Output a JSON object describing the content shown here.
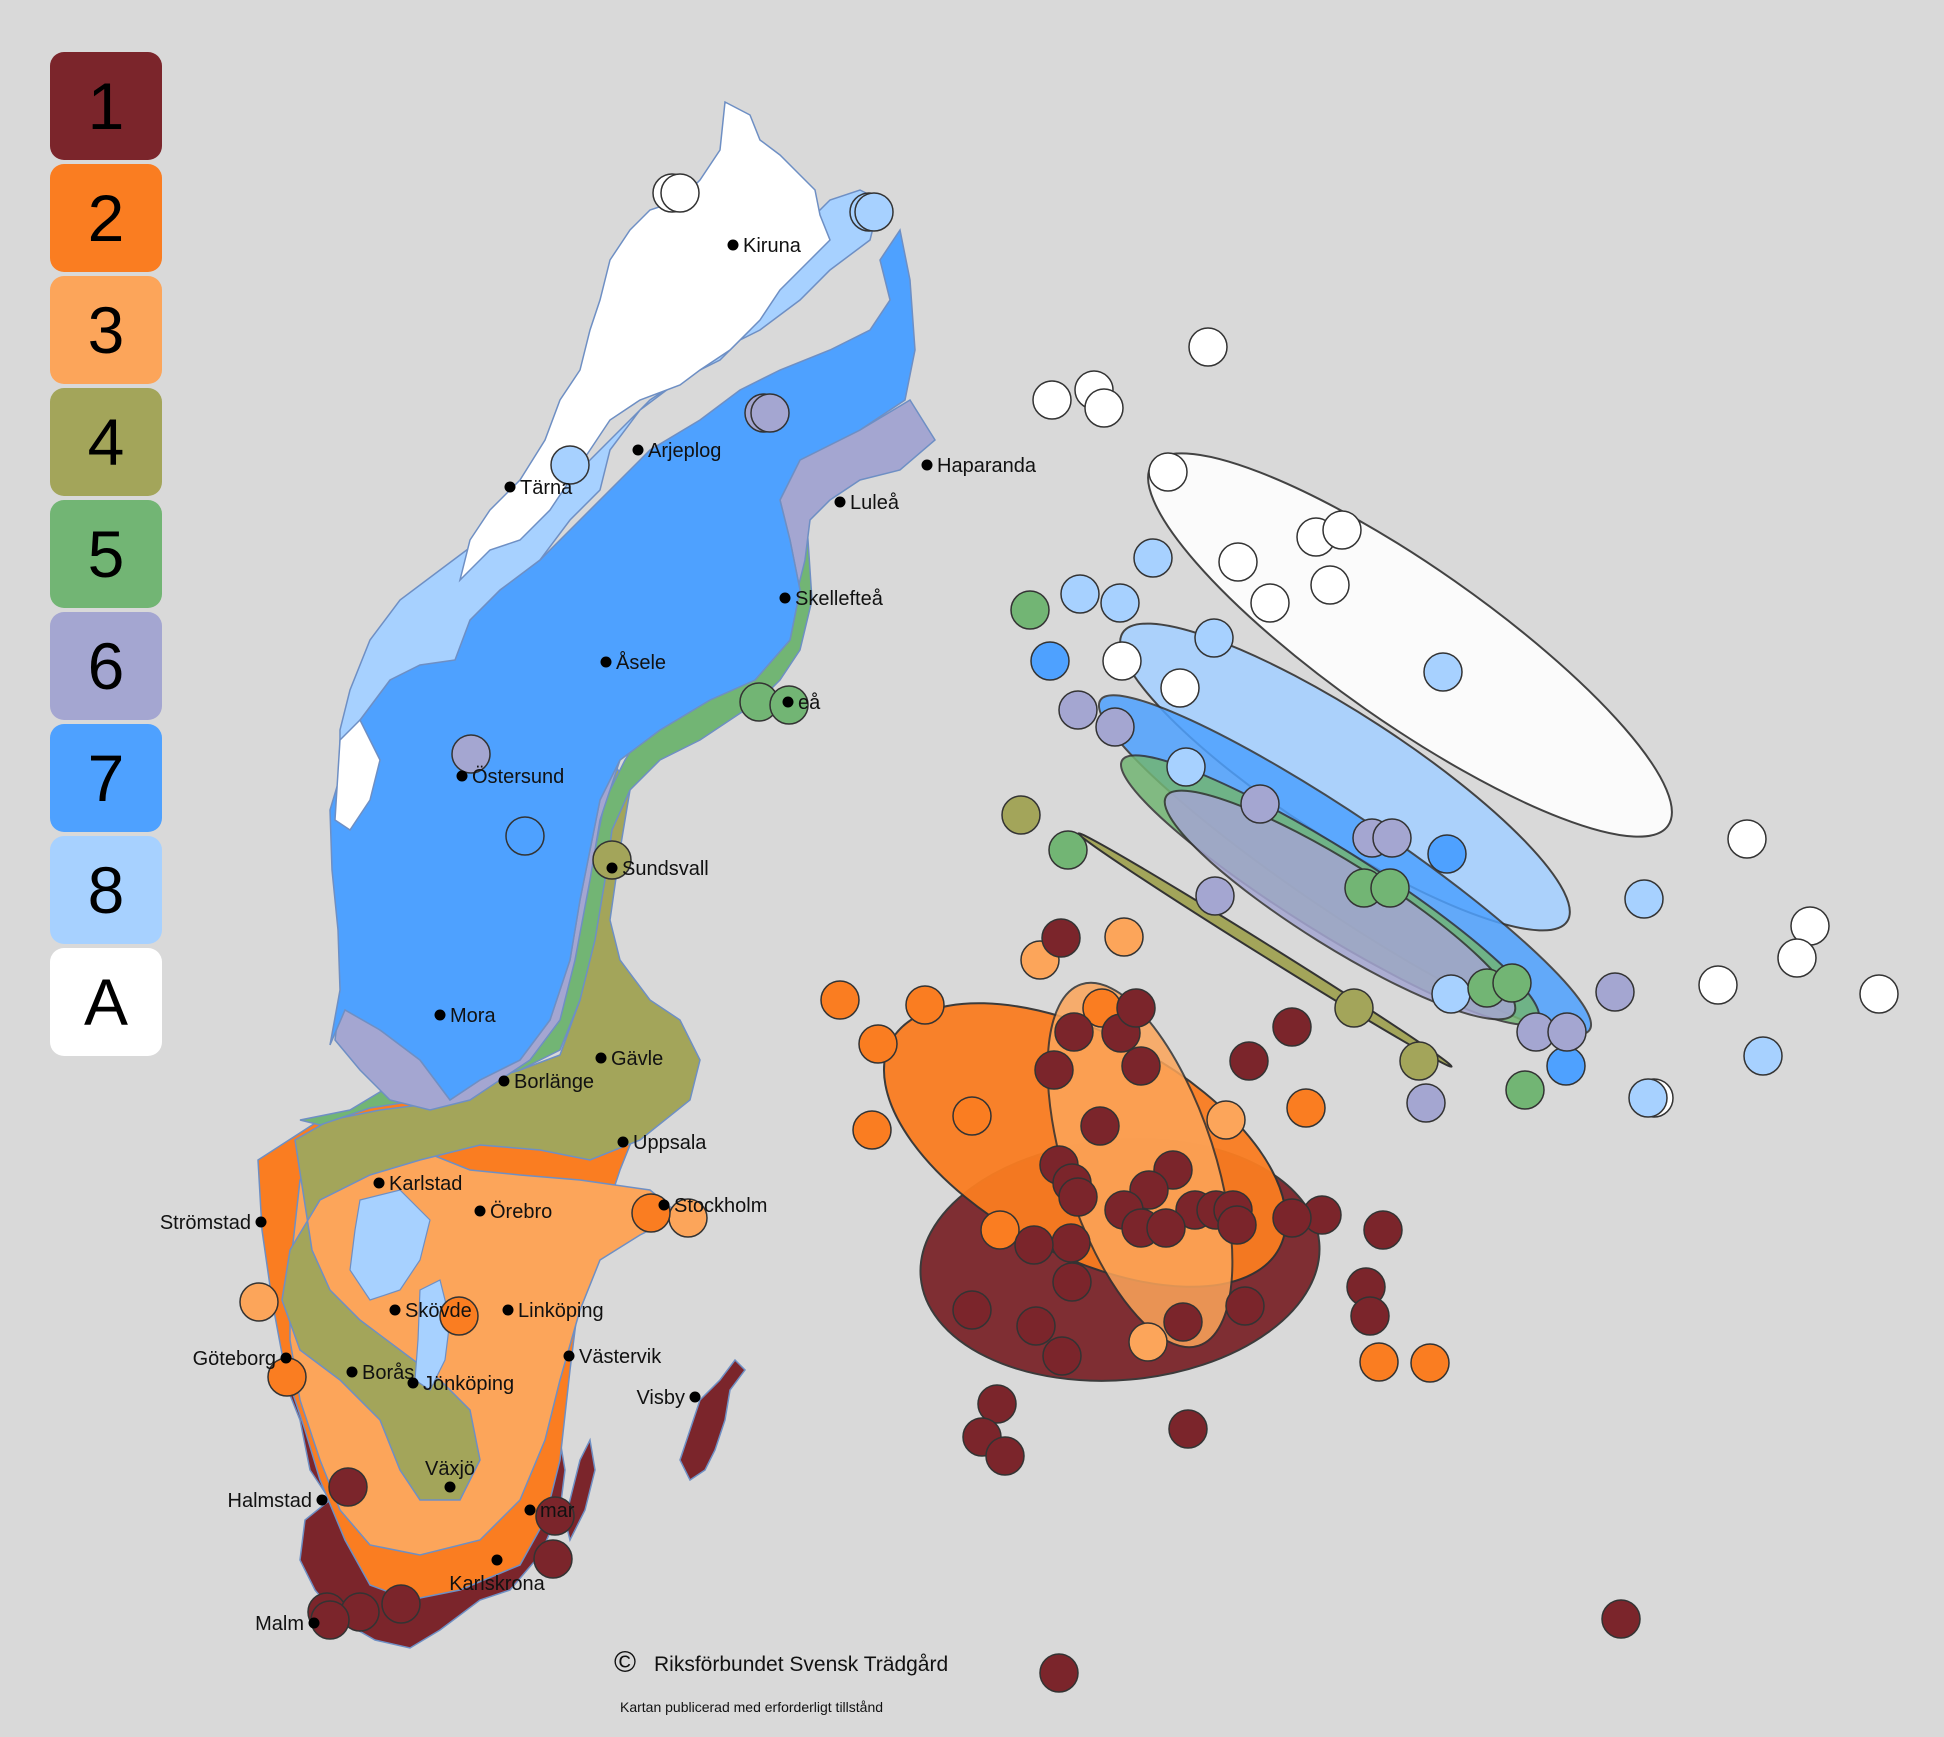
{
  "zones": [
    {
      "label": "1",
      "color": "#7b252b"
    },
    {
      "label": "2",
      "color": "#fa7d21"
    },
    {
      "label": "3",
      "color": "#fca55a"
    },
    {
      "label": "4",
      "color": "#a3a55a"
    },
    {
      "label": "5",
      "color": "#72b574"
    },
    {
      "label": "6",
      "color": "#a4a6d1"
    },
    {
      "label": "7",
      "color": "#4ea1ff"
    },
    {
      "label": "8",
      "color": "#a7d1ff"
    },
    {
      "label": "A",
      "color": "#ffffff"
    }
  ],
  "cities": [
    {
      "name": "Kiruna"
    },
    {
      "name": "Haparanda"
    },
    {
      "name": "Arjeplog"
    },
    {
      "name": "Tärna"
    },
    {
      "name": "Luleå"
    },
    {
      "name": "Skellefteå"
    },
    {
      "name": "Åsele"
    },
    {
      "name": "eå"
    },
    {
      "name": "Östersund"
    },
    {
      "name": "Sundsvall"
    },
    {
      "name": "Mora"
    },
    {
      "name": "Gävle"
    },
    {
      "name": "Borlänge"
    },
    {
      "name": "Uppsala"
    },
    {
      "name": "Karlstad"
    },
    {
      "name": "Strömstad"
    },
    {
      "name": "Örebro"
    },
    {
      "name": "Stockholm"
    },
    {
      "name": "Skövde"
    },
    {
      "name": "Linköping"
    },
    {
      "name": "Göteborg"
    },
    {
      "name": "Borås"
    },
    {
      "name": "Västervik"
    },
    {
      "name": "Jönköping"
    },
    {
      "name": "Visby"
    },
    {
      "name": "Växjö"
    },
    {
      "name": "Halmstad"
    },
    {
      "name": "mar"
    },
    {
      "name": "Karlskrona"
    },
    {
      "name": "Malm"
    }
  ],
  "credit": {
    "symbol": "©",
    "name": "Riksförbundet Svensk Trädgård",
    "note": "Kartan publicerad med erforderligt tillstånd"
  }
}
